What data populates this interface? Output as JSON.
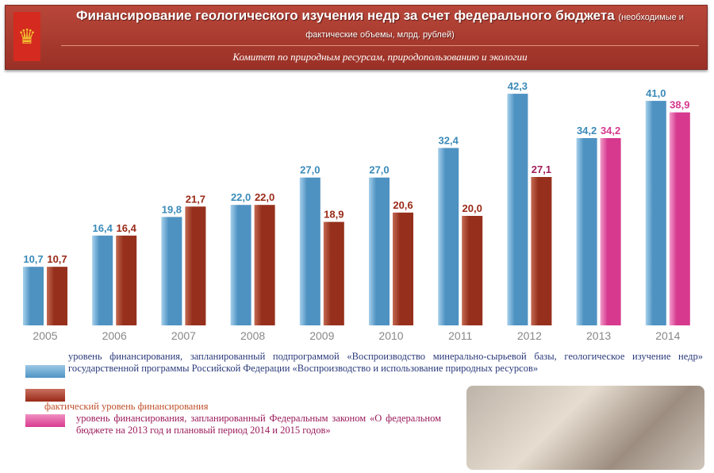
{
  "header": {
    "title_main": "Финансирование геологического изучения недр за счет федерального бюджета",
    "title_sub": "(необходимые и фактические объемы, млрд. рублей)",
    "committee": "Комитет по природным ресурсам, природопользованию и экологии"
  },
  "colors": {
    "planned": "#5a9fcc",
    "actual": "#a8402a",
    "federal_law": "#e0409a"
  },
  "chart_data": {
    "type": "bar",
    "title": "Финансирование геологического изучения недр за счет федерального бюджета",
    "categories": [
      "2005",
      "2006",
      "2007",
      "2008",
      "2009",
      "2010",
      "2011",
      "2012",
      "2013",
      "2014"
    ],
    "series": [
      {
        "name": "уровень финансирования, запланированный подпрограммой «Воспроизводство минерально-сырьевой базы, геологическое изучение недр» государственной программы Российской Федерации «Воспроизводство и использование природных ресурсов»",
        "key": "planned",
        "values": [
          10.7,
          16.4,
          19.8,
          22.0,
          27.0,
          27.0,
          32.4,
          42.3,
          34.2,
          41.0
        ],
        "labels": [
          "10,7",
          "16,4",
          "19,8",
          "22,0",
          "27,0",
          "27,0",
          "32,4",
          "42,3",
          "34,2",
          "41,0"
        ]
      },
      {
        "name": "фактический уровень финансирования",
        "key": "actual",
        "values": [
          10.7,
          16.4,
          21.7,
          22.0,
          18.9,
          20.6,
          20.0,
          27.1,
          null,
          null
        ],
        "labels": [
          "10,7",
          "16,4",
          "21,7",
          "22,0",
          "18,9",
          "20,6",
          "20,0",
          "27,1",
          null,
          null
        ]
      },
      {
        "name": "уровень финансирования, запланированный Федеральным законом «О федеральном бюджете на 2013 год и плановый период 2014 и 2015 годов»",
        "key": "federal_law",
        "values": [
          null,
          null,
          null,
          null,
          null,
          null,
          null,
          null,
          34.2,
          38.9
        ],
        "labels": [
          null,
          null,
          null,
          null,
          null,
          null,
          null,
          null,
          "34,2",
          "38,9"
        ]
      }
    ],
    "ylim": [
      0,
      45
    ],
    "xlabel": "",
    "ylabel": "млрд. рублей",
    "grid": false,
    "legend": "bottom-left"
  }
}
